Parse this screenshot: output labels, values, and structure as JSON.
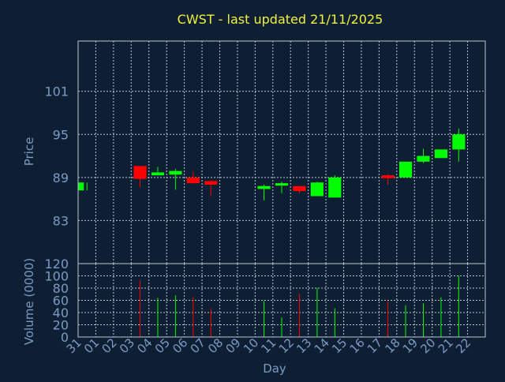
{
  "chart_data": {
    "type": "candlestick",
    "title": "CWST - last updated 21/11/2025",
    "xlabel": "Day",
    "price_panel": {
      "ylabel": "Price",
      "ylim": [
        77,
        108
      ],
      "yticks": [
        83,
        89,
        95,
        101
      ]
    },
    "volume_panel": {
      "ylabel": "Volume (0000)",
      "ylim": [
        0,
        120
      ],
      "yticks": [
        0,
        20,
        40,
        60,
        80,
        100,
        120
      ]
    },
    "x_labels": [
      "31",
      "01",
      "02",
      "03",
      "04",
      "05",
      "06",
      "07",
      "08",
      "09",
      "10",
      "11",
      "12",
      "13",
      "14",
      "15",
      "16",
      "17",
      "18",
      "19",
      "20",
      "21",
      "22"
    ],
    "candles": [
      {
        "day": "31",
        "open": 87.2,
        "close": 88.3,
        "high": 88.3,
        "low": 87.2,
        "volume": 0,
        "direction": "up"
      },
      {
        "day": "03",
        "open": 90.6,
        "close": 88.8,
        "high": 90.6,
        "low": 87.6,
        "volume": 93,
        "direction": "down"
      },
      {
        "day": "04",
        "open": 89.3,
        "close": 89.7,
        "high": 90.5,
        "low": 89.3,
        "volume": 64,
        "direction": "up"
      },
      {
        "day": "05",
        "open": 89.4,
        "close": 89.9,
        "high": 90.2,
        "low": 87.3,
        "volume": 68,
        "direction": "up"
      },
      {
        "day": "06",
        "open": 89.0,
        "close": 88.2,
        "high": 89.8,
        "low": 88.2,
        "volume": 65,
        "direction": "down"
      },
      {
        "day": "07",
        "open": 88.5,
        "close": 88.0,
        "high": 88.6,
        "low": 86.4,
        "volume": 46,
        "direction": "down"
      },
      {
        "day": "10",
        "open": 87.4,
        "close": 87.8,
        "high": 88.0,
        "low": 85.8,
        "volume": 59,
        "direction": "up"
      },
      {
        "day": "11",
        "open": 87.9,
        "close": 88.2,
        "high": 88.4,
        "low": 86.8,
        "volume": 32,
        "direction": "up"
      },
      {
        "day": "12",
        "open": 87.8,
        "close": 87.1,
        "high": 87.8,
        "low": 86.8,
        "volume": 71,
        "direction": "down"
      },
      {
        "day": "13",
        "open": 86.4,
        "close": 88.3,
        "high": 88.4,
        "low": 86.4,
        "volume": 80,
        "direction": "up"
      },
      {
        "day": "14",
        "open": 86.2,
        "close": 89.0,
        "high": 89.3,
        "low": 86.2,
        "volume": 47,
        "direction": "up"
      },
      {
        "day": "17",
        "open": 89.3,
        "close": 88.9,
        "high": 89.5,
        "low": 88.0,
        "volume": 58,
        "direction": "down"
      },
      {
        "day": "18",
        "open": 89.0,
        "close": 91.2,
        "high": 91.2,
        "low": 89.0,
        "volume": 52,
        "direction": "up"
      },
      {
        "day": "19",
        "open": 91.2,
        "close": 92.0,
        "high": 93.0,
        "low": 91.0,
        "volume": 55,
        "direction": "up"
      },
      {
        "day": "20",
        "open": 91.7,
        "close": 92.9,
        "high": 92.9,
        "low": 91.7,
        "volume": 65,
        "direction": "up"
      },
      {
        "day": "21",
        "open": 92.9,
        "close": 95.0,
        "high": 95.8,
        "low": 91.2,
        "volume": 100,
        "direction": "up"
      }
    ],
    "grid": true,
    "legend": "none",
    "colors": {
      "background": "#0f1f33",
      "plot_border": "#b8c6d6",
      "grid": "#b8c6d6",
      "title": "#f2f23c",
      "axis_text": "#7b9bc4",
      "up": "#00ff00",
      "down": "#ff0000"
    }
  }
}
